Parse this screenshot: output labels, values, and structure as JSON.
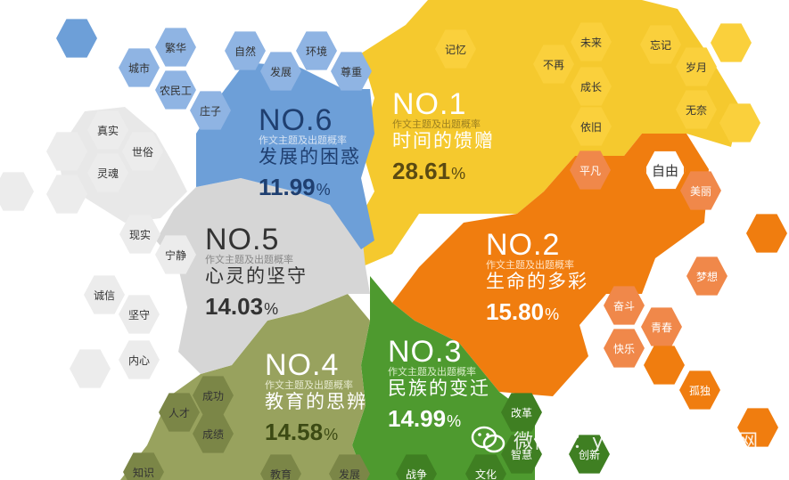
{
  "categories": [
    {
      "rank": "NO.1",
      "subtitle": "作文主题及出题概率",
      "theme": "时间的馈赠",
      "percent": "28.61",
      "unit": "%",
      "color": "#f5c92e",
      "text_color": "#5a4a12",
      "title_color": "#ffffff"
    },
    {
      "rank": "NO.2",
      "subtitle": "作文主题及出题概率",
      "theme": "生命的多彩",
      "percent": "15.80",
      "unit": "%",
      "color": "#f07d0f",
      "text_color": "#ffffff",
      "title_color": "#ffffff"
    },
    {
      "rank": "NO.3",
      "subtitle": "作文主题及出题概率",
      "theme": "民族的变迁",
      "percent": "14.99",
      "unit": "%",
      "color": "#4e9a2f",
      "text_color": "#ffffff",
      "title_color": "#ffffff"
    },
    {
      "rank": "NO.4",
      "subtitle": "作文主题及出题概率",
      "theme": "教育的思辨",
      "percent": "14.58",
      "unit": "%",
      "color": "#98a25e",
      "text_color": "#3c4a14",
      "title_color": "#3c4a14"
    },
    {
      "rank": "NO.5",
      "subtitle": "作文主题及出题概率",
      "theme": "心灵的坚守",
      "percent": "14.03",
      "unit": "%",
      "color": "#d6d6d6",
      "text_color": "#333333",
      "title_color": "#333333"
    },
    {
      "rank": "NO.6",
      "subtitle": "作文主题及出题概率",
      "theme": "发展的困惑",
      "percent": "11.99",
      "unit": "%",
      "color": "#6d9fd8",
      "text_color": "#1f3f70",
      "title_color": "#1f3f70"
    }
  ],
  "keywords": {
    "time": [
      "记忆",
      "未来",
      "忘记",
      "不再",
      "岁月",
      "成长",
      "无奈",
      "依旧"
    ],
    "life": [
      "平凡",
      "自由",
      "美丽",
      "梦想",
      "奋斗",
      "青春",
      "快乐",
      "孤独"
    ],
    "nation": [
      "改革",
      "智慧",
      "创新",
      "战争",
      "文化"
    ],
    "education": [
      "成功",
      "人才",
      "成绩",
      "知识",
      "教育",
      "发展"
    ],
    "soul": [
      "真实",
      "世俗",
      "灵魂",
      "现实",
      "宁静",
      "诚信",
      "坚守",
      "内心"
    ],
    "development": [
      "繁华",
      "城市",
      "自然",
      "环境",
      "农民工",
      "发展",
      "尊重",
      "庄子"
    ]
  },
  "watermark": {
    "label": "微信号：yunweipai",
    "site": "运维网"
  },
  "colors": {
    "yellow": "#f5c92e",
    "yellow_light": "#fad03c",
    "orange": "#f07d0f",
    "orange_light": "#f0884a",
    "green": "#4e9a2f",
    "green_dark": "#3f7f22",
    "olive": "#98a25e",
    "olive_dark": "#7b8647",
    "gray": "#d6d6d6",
    "gray_light": "#ececec",
    "blue": "#6d9fd8",
    "blue_light": "#8fb4e3"
  }
}
